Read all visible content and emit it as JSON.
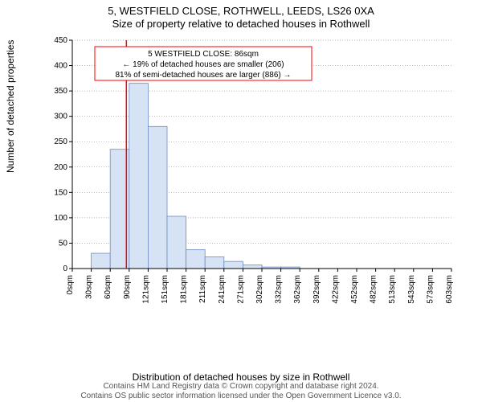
{
  "title_line1": "5, WESTFIELD CLOSE, ROTHWELL, LEEDS, LS26 0XA",
  "title_line2": "Size of property relative to detached houses in Rothwell",
  "ylabel": "Number of detached properties",
  "xlabel": "Distribution of detached houses by size in Rothwell",
  "footer_line1": "Contains HM Land Registry data © Crown copyright and database right 2024.",
  "footer_line2": "Contains OS public sector information licensed under the Open Government Licence v3.0.",
  "annotation": {
    "line1": "5 WESTFIELD CLOSE: 86sqm",
    "line2": "← 19% of detached houses are smaller (206)",
    "line3": "81% of semi-detached houses are larger (886) →"
  },
  "chart": {
    "type": "histogram",
    "ylim": [
      0,
      450
    ],
    "ytick_step": 50,
    "xticks": [
      "0sqm",
      "30sqm",
      "60sqm",
      "90sqm",
      "121sqm",
      "151sqm",
      "181sqm",
      "211sqm",
      "241sqm",
      "271sqm",
      "302sqm",
      "332sqm",
      "362sqm",
      "392sqm",
      "422sqm",
      "452sqm",
      "482sqm",
      "513sqm",
      "543sqm",
      "573sqm",
      "603sqm"
    ],
    "values": [
      0,
      30,
      235,
      365,
      280,
      103,
      37,
      23,
      14,
      7,
      3,
      3,
      0,
      0,
      0,
      0,
      0,
      0,
      0,
      0
    ],
    "bar_fill": "#d6e3f5",
    "bar_stroke": "#6b8bc4",
    "grid_color": "#777777",
    "axis_color": "#000000",
    "background": "#ffffff",
    "marker_x_sqm": 86,
    "marker_color": "#ff0000",
    "marker_width": 1.5,
    "annotation_fill": "#ffffff",
    "annotation_stroke": "#ff0000",
    "annotation_fontsize": 10
  }
}
